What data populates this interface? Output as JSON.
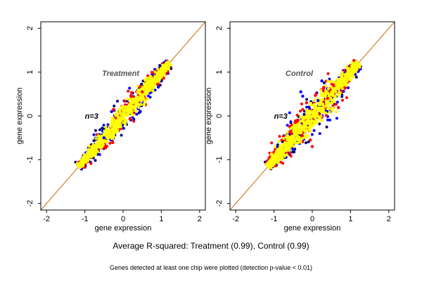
{
  "caption": {
    "main": "Average R-squared: Treatment (0.99), Control (0.99)",
    "sub": "Genes detected at least one chip were plotted (detection p-value < 0.01)"
  },
  "chart_data": [
    {
      "type": "scatter",
      "title": "Treatment",
      "annotation": "n=3",
      "xlabel": "gene expression",
      "ylabel": "gene expression",
      "xlim": [
        -2.15,
        2.15
      ],
      "ylim": [
        -2.15,
        2.15
      ],
      "x_ticks": [
        -2,
        -1,
        0,
        1,
        2
      ],
      "y_ticks": [
        -2,
        -1,
        0,
        1,
        2
      ],
      "reference_line": {
        "slope": 1,
        "intercept": 0,
        "color": "#cc6600"
      },
      "cloud": {
        "x_range": [
          -1.15,
          1.2
        ],
        "spread": 0.12
      },
      "outliers": [
        {
          "x": -0.3,
          "y": 0.1,
          "color": "#0000ff"
        },
        {
          "x": -0.25,
          "y": 0.15,
          "color": "#ff0000"
        },
        {
          "x": 0.45,
          "y": 0.1,
          "color": "#0000ff"
        },
        {
          "x": -0.5,
          "y": -0.5,
          "color": "#0000ff"
        },
        {
          "x": 0.5,
          "y": 0.55,
          "color": "#ff0000"
        }
      ],
      "colors": {
        "dark": "#000080",
        "blue": "#0000ff",
        "red": "#ff0000",
        "yellow": "#ffff00"
      }
    },
    {
      "type": "scatter",
      "title": "Control",
      "annotation": "n=3",
      "xlabel": "gene expression",
      "ylabel": "gene expression",
      "xlim": [
        -2.15,
        2.15
      ],
      "ylim": [
        -2.15,
        2.15
      ],
      "x_ticks": [
        -2,
        -1,
        0,
        1,
        2
      ],
      "y_ticks": [
        -2,
        -1,
        0,
        1,
        2
      ],
      "reference_line": {
        "slope": 1,
        "intercept": 0,
        "color": "#cc6600"
      },
      "cloud": {
        "x_range": [
          -1.15,
          1.2
        ],
        "spread": 0.16
      },
      "outliers": [
        {
          "x": 0.0,
          "y": -0.7,
          "color": "#ff0000"
        },
        {
          "x": -0.05,
          "y": -0.55,
          "color": "#ff0000"
        },
        {
          "x": -0.3,
          "y": 0.55,
          "color": "#0000ff"
        },
        {
          "x": -0.25,
          "y": 0.45,
          "color": "#0000ff"
        },
        {
          "x": 0.25,
          "y": 0.8,
          "color": "#0000ff"
        },
        {
          "x": 0.3,
          "y": 0.65,
          "color": "#ff0000"
        },
        {
          "x": 0.1,
          "y": 0.5,
          "color": "#ff0000"
        },
        {
          "x": 0.15,
          "y": 0.35,
          "color": "#0000ff"
        },
        {
          "x": -0.15,
          "y": 0.3,
          "color": "#ff0000"
        },
        {
          "x": 0.4,
          "y": 0.4,
          "color": "#ff0000"
        }
      ],
      "colors": {
        "dark": "#000080",
        "blue": "#0000ff",
        "red": "#ff0000",
        "yellow": "#ffff00"
      }
    }
  ]
}
